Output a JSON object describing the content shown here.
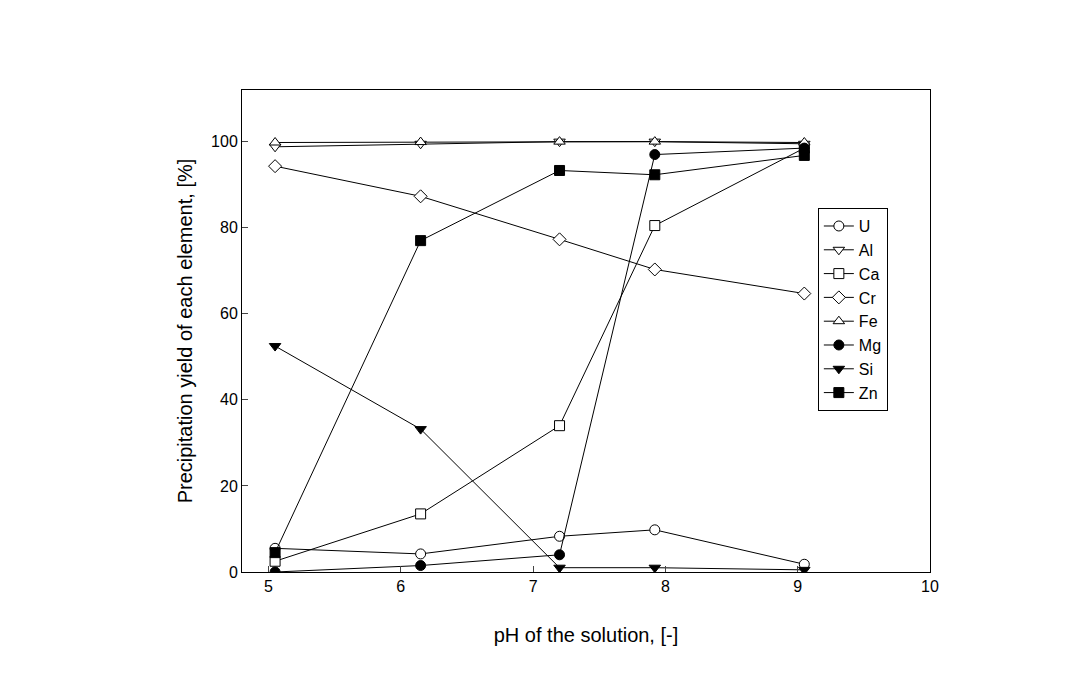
{
  "chart_data": {
    "type": "line",
    "x_label": "pH of the solution, [-]",
    "y_label": "Precipitation yield of each element, [%]",
    "x": [
      5.05,
      6.15,
      7.2,
      7.92,
      9.05
    ],
    "series": [
      {
        "name": "U",
        "color": "#000000",
        "marker": "circle-open",
        "values": [
          5.5,
          4.2,
          8.3,
          9.8,
          1.8
        ]
      },
      {
        "name": "Al",
        "color": "#000000",
        "marker": "triangle-down-open",
        "values": [
          98.8,
          99.5,
          100,
          100,
          99.5
        ]
      },
      {
        "name": "Ca",
        "color": "#000000",
        "marker": "square-open",
        "values": [
          2.5,
          13.5,
          34,
          80.5,
          98.5
        ]
      },
      {
        "name": "Cr",
        "color": "#000000",
        "marker": "diamond-open",
        "values": [
          94.3,
          87.3,
          77.3,
          70.3,
          64.7
        ]
      },
      {
        "name": "Fe",
        "color": "#000000",
        "marker": "triangle-up-open",
        "values": [
          99.8,
          99.9,
          100,
          100,
          99.8
        ]
      },
      {
        "name": "Mg",
        "color": "#000000",
        "marker": "circle",
        "values": [
          0,
          1.5,
          4,
          97,
          98.5
        ]
      },
      {
        "name": "Si",
        "color": "#000000",
        "marker": "triangle-down",
        "values": [
          52.5,
          33.2,
          1,
          1,
          0.5
        ]
      },
      {
        "name": "Zn",
        "color": "#000000",
        "marker": "square",
        "values": [
          4.5,
          77,
          93.3,
          92.3,
          96.8
        ]
      }
    ],
    "xlim": [
      4.8,
      10
    ],
    "xticks": [
      5,
      6,
      7,
      8,
      9,
      10
    ],
    "ylim": [
      0,
      112
    ],
    "yticks": [
      0,
      20,
      40,
      60,
      80,
      100
    ],
    "grid": false,
    "legend": "right"
  }
}
